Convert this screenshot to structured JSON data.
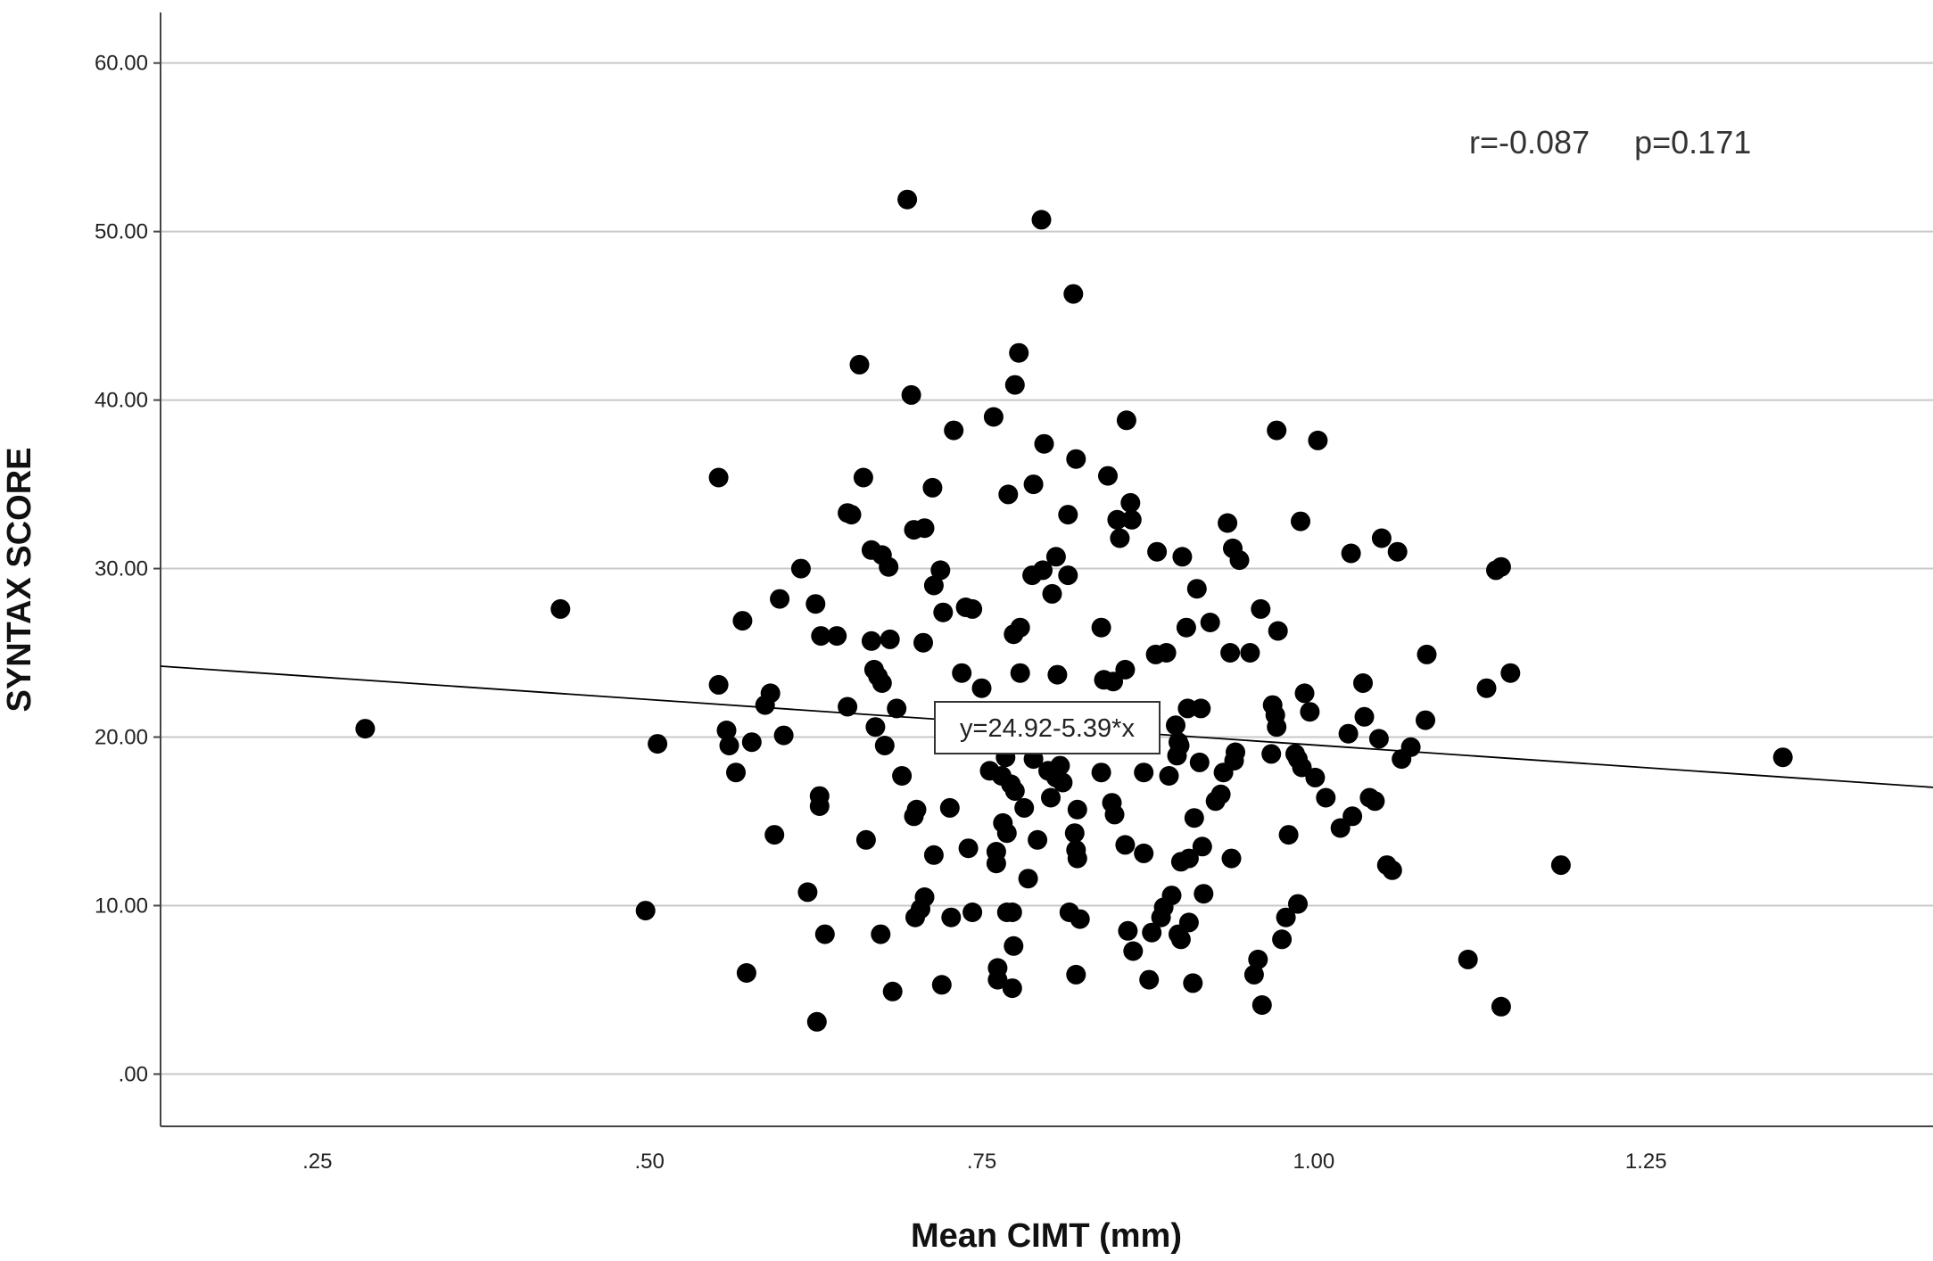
{
  "chart_data": {
    "type": "scatter",
    "xlabel": "Mean CIMT (mm)",
    "ylabel": "SYNTAX SCORE",
    "xlim": [
      0.132,
      1.466
    ],
    "ylim": [
      -3.1,
      63
    ],
    "xticks": [
      ".25",
      ".50",
      ".75",
      "1.00",
      "1.25"
    ],
    "xtick_values": [
      0.25,
      0.5,
      0.75,
      1.0,
      1.25
    ],
    "yticks": [
      ".00",
      "10.00",
      "20.00",
      "30.00",
      "40.00",
      "50.00",
      "60.00"
    ],
    "ytick_values": [
      0,
      10,
      20,
      30,
      40,
      50,
      60
    ],
    "grid": "horizontal",
    "annotations": {
      "stats": "r=-0.087     p=0.171",
      "equation": "y=24.92-5.39*x"
    },
    "fit_line": {
      "intercept": 24.92,
      "slope": -5.39
    },
    "colors": {
      "points": "#000000",
      "grid": "#c8c8c8",
      "line": "#000000"
    },
    "points": [
      [
        0.286,
        20.5
      ],
      [
        0.433,
        27.6
      ],
      [
        0.497,
        9.7
      ],
      [
        0.506,
        19.6
      ],
      [
        0.552,
        35.4
      ],
      [
        0.552,
        23.1
      ],
      [
        0.558,
        20.4
      ],
      [
        0.56,
        19.5
      ],
      [
        0.565,
        17.9
      ],
      [
        0.57,
        26.9
      ],
      [
        0.573,
        6.0
      ],
      [
        0.577,
        19.7
      ],
      [
        0.587,
        21.9
      ],
      [
        0.591,
        22.6
      ],
      [
        0.594,
        14.2
      ],
      [
        0.598,
        28.2
      ],
      [
        0.601,
        20.1
      ],
      [
        0.614,
        30.0
      ],
      [
        0.619,
        10.8
      ],
      [
        0.625,
        27.9
      ],
      [
        0.626,
        3.1
      ],
      [
        0.628,
        16.5
      ],
      [
        0.628,
        15.9
      ],
      [
        0.629,
        26.0
      ],
      [
        0.632,
        8.3
      ],
      [
        0.641,
        26.0
      ],
      [
        0.649,
        21.8
      ],
      [
        0.649,
        33.3
      ],
      [
        0.652,
        33.2
      ],
      [
        0.658,
        42.1
      ],
      [
        0.661,
        35.4
      ],
      [
        0.663,
        13.9
      ],
      [
        0.667,
        31.1
      ],
      [
        0.667,
        25.7
      ],
      [
        0.669,
        24.0
      ],
      [
        0.67,
        20.6
      ],
      [
        0.672,
        23.6
      ],
      [
        0.675,
        30.8
      ],
      [
        0.675,
        23.2
      ],
      [
        0.674,
        8.3
      ],
      [
        0.677,
        19.5
      ],
      [
        0.68,
        30.1
      ],
      [
        0.681,
        25.8
      ],
      [
        0.683,
        4.9
      ],
      [
        0.686,
        21.7
      ],
      [
        0.69,
        17.7
      ],
      [
        0.694,
        51.9
      ],
      [
        0.697,
        40.3
      ],
      [
        0.699,
        32.3
      ],
      [
        0.699,
        15.3
      ],
      [
        0.7,
        9.3
      ],
      [
        0.701,
        15.7
      ],
      [
        0.704,
        9.8
      ],
      [
        0.706,
        25.6
      ],
      [
        0.707,
        32.4
      ],
      [
        0.707,
        10.5
      ],
      [
        0.713,
        34.8
      ],
      [
        0.714,
        29.0
      ],
      [
        0.714,
        13.0
      ],
      [
        0.719,
        29.9
      ],
      [
        0.72,
        5.3
      ],
      [
        0.721,
        27.4
      ],
      [
        0.726,
        15.8
      ],
      [
        0.727,
        9.3
      ],
      [
        0.729,
        38.2
      ],
      [
        0.735,
        23.8
      ],
      [
        0.738,
        27.7
      ],
      [
        0.74,
        13.4
      ],
      [
        0.743,
        27.6
      ],
      [
        0.743,
        9.6
      ],
      [
        0.75,
        22.9
      ],
      [
        0.756,
        18.0
      ],
      [
        0.759,
        39.0
      ],
      [
        0.761,
        13.2
      ],
      [
        0.761,
        12.5
      ],
      [
        0.762,
        6.3
      ],
      [
        0.762,
        5.6
      ],
      [
        0.765,
        17.7
      ],
      [
        0.766,
        14.9
      ],
      [
        0.768,
        18.8
      ],
      [
        0.769,
        14.3
      ],
      [
        0.769,
        9.6
      ],
      [
        0.77,
        34.4
      ],
      [
        0.772,
        17.2
      ],
      [
        0.773,
        9.6
      ],
      [
        0.773,
        5.1
      ],
      [
        0.774,
        26.1
      ],
      [
        0.774,
        7.6
      ],
      [
        0.775,
        40.9
      ],
      [
        0.775,
        16.8
      ],
      [
        0.778,
        42.8
      ],
      [
        0.779,
        23.8
      ],
      [
        0.779,
        26.5
      ],
      [
        0.782,
        15.8
      ],
      [
        0.785,
        11.6
      ],
      [
        0.788,
        29.6
      ],
      [
        0.789,
        35.0
      ],
      [
        0.789,
        18.7
      ],
      [
        0.792,
        13.9
      ],
      [
        0.795,
        50.7
      ],
      [
        0.796,
        29.9
      ],
      [
        0.797,
        37.4
      ],
      [
        0.8,
        18.0
      ],
      [
        0.802,
        16.4
      ],
      [
        0.803,
        28.5
      ],
      [
        0.806,
        30.7
      ],
      [
        0.806,
        17.6
      ],
      [
        0.807,
        23.7
      ],
      [
        0.809,
        18.3
      ],
      [
        0.811,
        17.3
      ],
      [
        0.815,
        29.6
      ],
      [
        0.815,
        33.2
      ],
      [
        0.816,
        9.6
      ],
      [
        0.819,
        46.3
      ],
      [
        0.82,
        14.3
      ],
      [
        0.821,
        5.9
      ],
      [
        0.821,
        36.5
      ],
      [
        0.821,
        13.3
      ],
      [
        0.822,
        15.7
      ],
      [
        0.822,
        12.8
      ],
      [
        0.824,
        9.2
      ],
      [
        0.84,
        26.5
      ],
      [
        0.84,
        17.9
      ],
      [
        0.842,
        23.4
      ],
      [
        0.845,
        35.5
      ],
      [
        0.848,
        16.1
      ],
      [
        0.849,
        23.3
      ],
      [
        0.85,
        15.4
      ],
      [
        0.852,
        32.9
      ],
      [
        0.854,
        31.8
      ],
      [
        0.858,
        24.0
      ],
      [
        0.858,
        13.6
      ],
      [
        0.859,
        38.8
      ],
      [
        0.86,
        8.5
      ],
      [
        0.862,
        33.9
      ],
      [
        0.863,
        32.9
      ],
      [
        0.864,
        7.3
      ],
      [
        0.872,
        17.9
      ],
      [
        0.872,
        13.1
      ],
      [
        0.876,
        5.6
      ],
      [
        0.878,
        8.4
      ],
      [
        0.881,
        24.9
      ],
      [
        0.882,
        31.0
      ],
      [
        0.885,
        9.3
      ],
      [
        0.887,
        9.9
      ],
      [
        0.889,
        25.0
      ],
      [
        0.891,
        17.7
      ],
      [
        0.893,
        10.6
      ],
      [
        0.896,
        20.7
      ],
      [
        0.897,
        18.9
      ],
      [
        0.898,
        19.7
      ],
      [
        0.899,
        19.5
      ],
      [
        0.898,
        8.3
      ],
      [
        0.9,
        8.0
      ],
      [
        0.9,
        12.6
      ],
      [
        0.901,
        30.7
      ],
      [
        0.904,
        26.5
      ],
      [
        0.905,
        21.7
      ],
      [
        0.906,
        12.8
      ],
      [
        0.906,
        9.0
      ],
      [
        0.909,
        5.4
      ],
      [
        0.91,
        15.2
      ],
      [
        0.912,
        28.8
      ],
      [
        0.914,
        18.5
      ],
      [
        0.915,
        21.7
      ],
      [
        0.916,
        13.5
      ],
      [
        0.917,
        10.7
      ],
      [
        0.922,
        26.8
      ],
      [
        0.926,
        16.2
      ],
      [
        0.93,
        16.6
      ],
      [
        0.932,
        17.9
      ],
      [
        0.935,
        32.7
      ],
      [
        0.937,
        25.0
      ],
      [
        0.938,
        12.8
      ],
      [
        0.939,
        31.2
      ],
      [
        0.94,
        18.6
      ],
      [
        0.941,
        19.1
      ],
      [
        0.944,
        30.5
      ],
      [
        0.952,
        25.0
      ],
      [
        0.955,
        5.9
      ],
      [
        0.958,
        6.8
      ],
      [
        0.96,
        27.6
      ],
      [
        0.961,
        4.1
      ],
      [
        0.968,
        19.0
      ],
      [
        0.969,
        21.9
      ],
      [
        0.971,
        21.3
      ],
      [
        0.972,
        20.6
      ],
      [
        0.972,
        38.2
      ],
      [
        0.973,
        26.3
      ],
      [
        0.976,
        8.0
      ],
      [
        0.979,
        9.3
      ],
      [
        0.981,
        14.2
      ],
      [
        0.986,
        19.0
      ],
      [
        0.988,
        10.1
      ],
      [
        0.988,
        18.7
      ],
      [
        0.99,
        32.8
      ],
      [
        0.991,
        18.2
      ],
      [
        0.993,
        22.6
      ],
      [
        0.997,
        21.5
      ],
      [
        1.001,
        17.6
      ],
      [
        1.003,
        37.6
      ],
      [
        1.009,
        16.4
      ],
      [
        1.02,
        14.6
      ],
      [
        1.026,
        20.2
      ],
      [
        1.028,
        30.9
      ],
      [
        1.029,
        15.3
      ],
      [
        1.037,
        23.2
      ],
      [
        1.038,
        21.2
      ],
      [
        1.042,
        16.4
      ],
      [
        1.046,
        16.2
      ],
      [
        1.049,
        19.9
      ],
      [
        1.051,
        31.8
      ],
      [
        1.055,
        12.4
      ],
      [
        1.059,
        12.1
      ],
      [
        1.063,
        31.0
      ],
      [
        1.066,
        18.7
      ],
      [
        1.073,
        19.4
      ],
      [
        1.084,
        21.0
      ],
      [
        1.085,
        24.9
      ],
      [
        1.116,
        6.8
      ],
      [
        1.13,
        22.9
      ],
      [
        1.137,
        29.9
      ],
      [
        1.141,
        30.1
      ],
      [
        1.141,
        4.0
      ],
      [
        1.148,
        23.8
      ],
      [
        1.186,
        12.4
      ],
      [
        1.353,
        18.8
      ]
    ]
  }
}
